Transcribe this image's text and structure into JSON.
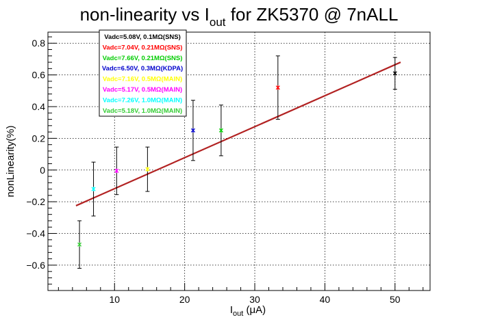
{
  "chart_data": {
    "type": "scatter",
    "title": {
      "main": "non-linearity vs I",
      "sub": "out",
      "rest": " for ZK5370 @ 7nALL"
    },
    "xlabel": {
      "main": "I",
      "sub": "out",
      "rest": " (μA)"
    },
    "ylabel": "nonLinearity(%)",
    "xlim": [
      0.5,
      55
    ],
    "ylim": [
      -0.76,
      0.87
    ],
    "xticks": [
      10,
      20,
      30,
      40,
      50
    ],
    "yticks": [
      -0.6,
      -0.4,
      -0.2,
      0,
      0.2,
      0.4,
      0.6,
      0.8
    ],
    "ytick_labels": [
      "−0.6",
      "−0.4",
      "−0.2",
      "0",
      "0.2",
      "0.4",
      "0.6",
      "0.8"
    ],
    "grid": true,
    "legend_position": "top-left",
    "series": [
      {
        "name": "Vadc=5.08V, 0.1MΩ(SNS)",
        "color": "#000000",
        "x": 50.0,
        "y": 0.61,
        "err": 0.1
      },
      {
        "name": "Vadc=7.04V, 0.21MΩ(SNS)",
        "color": "#ff0000",
        "x": 33.3,
        "y": 0.52,
        "err": 0.2
      },
      {
        "name": "Vadc=7.66V, 0.21MΩ(SNS)",
        "color": "#00cc00",
        "x": 25.2,
        "y": 0.25,
        "err": 0.16
      },
      {
        "name": "Vadc=6.50V, 0.3MΩ(KDPA)",
        "color": "#0000cc",
        "x": 21.2,
        "y": 0.25,
        "err": 0.19
      },
      {
        "name": "Vadc=7.16V, 0.5MΩ(MAIN)",
        "color": "#ffff00",
        "x": 14.7,
        "y": 0.005,
        "err": 0.14
      },
      {
        "name": "Vadc=5.17V, 0.5MΩ(MAIN)",
        "color": "#ff00ff",
        "x": 10.3,
        "y": -0.005,
        "err": 0.15
      },
      {
        "name": "Vadc=7.26V, 1.0MΩ(MAIN)",
        "color": "#00ffff",
        "x": 7.0,
        "y": -0.12,
        "err": 0.17
      },
      {
        "name": "Vadc=5.18V, 1.0MΩ(MAIN)",
        "color": "#33cc33",
        "x": 5.0,
        "y": -0.47,
        "err": 0.15
      }
    ],
    "fit": {
      "color": "#b22222",
      "x": [
        4.5,
        50.8
      ],
      "y": [
        -0.225,
        0.68
      ]
    }
  }
}
